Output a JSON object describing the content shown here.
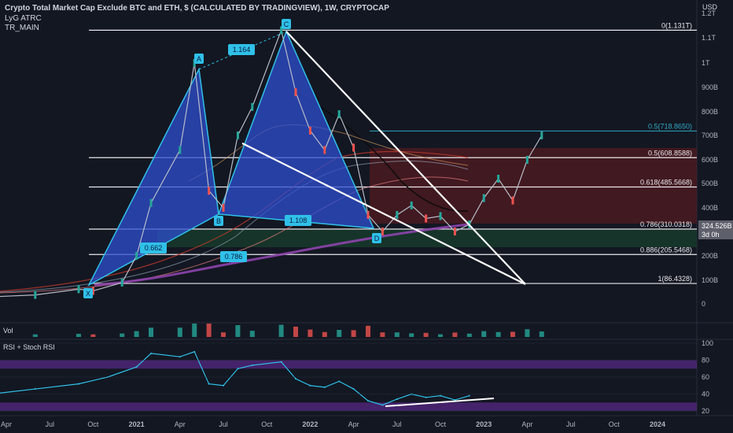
{
  "header": {
    "title": "Crypto Total Market Cap Exclude BTC and ETH, $ (CALCULATED BY TRADINGVIEW), 1W, CRYPTOCAP",
    "indicator1": "LyG ATRC",
    "indicator2": "TR_MAIN",
    "currency": "USD"
  },
  "panes": {
    "volume": "Vol",
    "rsi": "RSI + Stoch RSI"
  },
  "colors": {
    "background": "#131722",
    "pattern_fill": "#2f4fd0",
    "pattern_stroke": "#2fc0e8",
    "fib_line": "#e8e8ec",
    "fib_cyan": "#2fa8c0",
    "red_zone": "#5a1e24",
    "green_zone": "#1a3a2a",
    "rsi_line": "#2fc0e8",
    "rsi_band": "#5a2a8a",
    "price_tag": "#5d606b"
  },
  "chart_data": {
    "type": "line",
    "title": "Crypto Total Market Cap Exclude BTC and ETH, $ (CALCULATED BY TRADINGVIEW), 1W, CRYPTOCAP",
    "x_tick_labels": [
      "Apr",
      "Jul",
      "Oct",
      "2021",
      "Apr",
      "Jul",
      "Oct",
      "2022",
      "Apr",
      "Jul",
      "Oct",
      "2023",
      "Apr",
      "Jul",
      "Oct",
      "2024"
    ],
    "y_tick_labels": [
      "1.2T",
      "1.1T",
      "1T",
      "900B",
      "800B",
      "700B",
      "600B",
      "500B",
      "400B",
      "300B",
      "200B",
      "100B",
      "0"
    ],
    "ylim": [
      0,
      1200
    ],
    "y_unit": "B",
    "harmonic_pattern": {
      "points": [
        "X",
        "A",
        "B",
        "C",
        "D"
      ],
      "ratios": [
        "1.164",
        "0.662",
        "0.786",
        "1.108"
      ]
    },
    "fib_levels": [
      {
        "label": "0(1.131T)",
        "value": 1131
      },
      {
        "label": "0.5(718.8650)",
        "value": 718.865
      },
      {
        "label": "0.5(608.8588)",
        "value": 608.8588
      },
      {
        "label": "0.618(485.5668)",
        "value": 485.5668
      },
      {
        "label": "0.786(310.0318)",
        "value": 310.0318
      },
      {
        "label": "0.886(205.5468)",
        "value": 205.5468
      },
      {
        "label": "1(86.4328)",
        "value": 86.4328
      }
    ],
    "current_price": {
      "value": 324.526,
      "label": "324.526B",
      "countdown": "3d 0h"
    },
    "price_series": [
      {
        "date": "2020-03",
        "value": 30
      },
      {
        "date": "2020-06",
        "value": 38
      },
      {
        "date": "2020-09",
        "value": 62
      },
      {
        "date": "2020-10",
        "value": 55
      },
      {
        "date": "2020-12",
        "value": 90
      },
      {
        "date": "2021-01",
        "value": 200
      },
      {
        "date": "2021-02",
        "value": 420
      },
      {
        "date": "2021-04",
        "value": 640
      },
      {
        "date": "2021-05",
        "value": 1000
      },
      {
        "date": "2021-06",
        "value": 470
      },
      {
        "date": "2021-07",
        "value": 400
      },
      {
        "date": "2021-08",
        "value": 700
      },
      {
        "date": "2021-09",
        "value": 820
      },
      {
        "date": "2021-11",
        "value": 1131
      },
      {
        "date": "2021-12",
        "value": 880
      },
      {
        "date": "2022-01",
        "value": 720
      },
      {
        "date": "2022-02",
        "value": 640
      },
      {
        "date": "2022-03",
        "value": 790
      },
      {
        "date": "2022-04",
        "value": 650
      },
      {
        "date": "2022-05",
        "value": 370
      },
      {
        "date": "2022-06",
        "value": 300
      },
      {
        "date": "2022-07",
        "value": 370
      },
      {
        "date": "2022-08",
        "value": 410
      },
      {
        "date": "2022-09",
        "value": 355
      },
      {
        "date": "2022-10",
        "value": 365
      },
      {
        "date": "2022-11",
        "value": 300
      },
      {
        "date": "2022-12",
        "value": 330
      },
      {
        "date": "2023-01",
        "value": 440
      },
      {
        "date": "2023-02",
        "value": 520
      },
      {
        "date": "2023-03",
        "value": 430
      },
      {
        "date": "2023-04",
        "value": 600
      },
      {
        "date": "2023-05",
        "value": 700
      }
    ],
    "rsi": {
      "y_tick_labels": [
        "100",
        "80",
        "60",
        "40",
        "20"
      ],
      "bands": [
        [
          70,
          80
        ],
        [
          20,
          30
        ]
      ],
      "series": [
        {
          "date": "2020-03",
          "value": 40
        },
        {
          "date": "2020-06",
          "value": 46
        },
        {
          "date": "2020-09",
          "value": 52
        },
        {
          "date": "2020-11",
          "value": 60
        },
        {
          "date": "2021-01",
          "value": 72
        },
        {
          "date": "2021-02",
          "value": 88
        },
        {
          "date": "2021-04",
          "value": 84
        },
        {
          "date": "2021-05",
          "value": 90
        },
        {
          "date": "2021-06",
          "value": 52
        },
        {
          "date": "2021-07",
          "value": 50
        },
        {
          "date": "2021-08",
          "value": 70
        },
        {
          "date": "2021-09",
          "value": 74
        },
        {
          "date": "2021-11",
          "value": 78
        },
        {
          "date": "2021-12",
          "value": 58
        },
        {
          "date": "2022-01",
          "value": 50
        },
        {
          "date": "2022-02",
          "value": 48
        },
        {
          "date": "2022-03",
          "value": 55
        },
        {
          "date": "2022-04",
          "value": 46
        },
        {
          "date": "2022-05",
          "value": 32
        },
        {
          "date": "2022-06",
          "value": 27
        },
        {
          "date": "2022-07",
          "value": 34
        },
        {
          "date": "2022-08",
          "value": 40
        },
        {
          "date": "2022-09",
          "value": 36
        },
        {
          "date": "2022-10",
          "value": 38
        },
        {
          "date": "2022-11",
          "value": 33
        },
        {
          "date": "2022-12",
          "value": 38
        }
      ]
    }
  }
}
